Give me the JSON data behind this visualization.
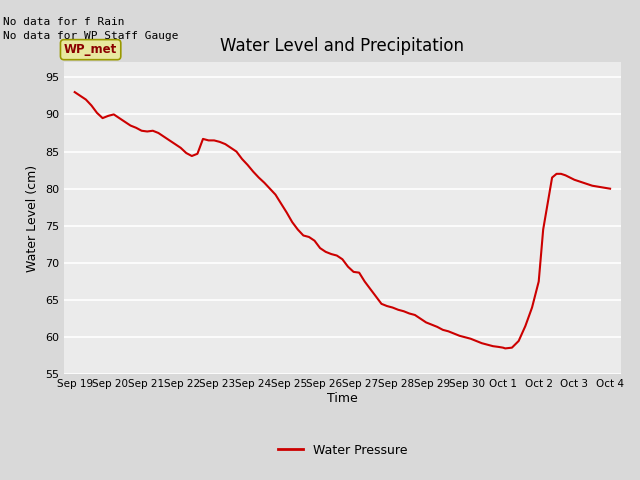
{
  "title": "Water Level and Precipitation",
  "xlabel": "Time",
  "ylabel": "Water Level (cm)",
  "ylim": [
    55,
    97
  ],
  "yticks": [
    55,
    60,
    65,
    70,
    75,
    80,
    85,
    90,
    95
  ],
  "legend_label": "Water Pressure",
  "line_color": "#cc0000",
  "fig_bg_color": "#d9d9d9",
  "plot_bg_color": "#ebebeb",
  "annotation_texts": [
    "No data for f Rain",
    "No data for WP Staff Gauge"
  ],
  "legend_box_color": "#e8e8a0",
  "legend_box_edge": "#999900",
  "legend_box_text": "WP_met",
  "x_tick_labels": [
    "Sep 19",
    "Sep 20",
    "Sep 21",
    "Sep 22",
    "Sep 23",
    "Sep 24",
    "Sep 25",
    "Sep 26",
    "Sep 27",
    "Sep 28",
    "Sep 29",
    "Sep 30",
    "Oct 1",
    "Oct 2",
    "Oct 3",
    "Oct 4"
  ],
  "x_values": [
    0,
    1,
    2,
    3,
    4,
    5,
    6,
    7,
    8,
    9,
    10,
    11,
    12,
    13,
    14,
    15
  ],
  "water_level": [
    93.0,
    92.5,
    92.0,
    91.2,
    90.2,
    89.5,
    89.8,
    90.0,
    89.5,
    89.0,
    88.5,
    88.2,
    87.8,
    87.7,
    87.8,
    87.5,
    87.0,
    86.5,
    86.0,
    85.5,
    84.8,
    84.4,
    84.7,
    86.7,
    86.5,
    86.5,
    86.3,
    86.0,
    85.5,
    85.0,
    84.0,
    83.2,
    82.3,
    81.5,
    80.8,
    80.0,
    79.2,
    78.0,
    76.8,
    75.5,
    74.5,
    73.7,
    73.5,
    73.0,
    72.0,
    71.5,
    71.2,
    71.0,
    70.5,
    69.5,
    68.8,
    68.7,
    67.5,
    66.5,
    65.5,
    64.5,
    64.2,
    64.0,
    63.7,
    63.5,
    63.2,
    63.0,
    62.5,
    62.0,
    61.7,
    61.4,
    61.0,
    60.8,
    60.5,
    60.2,
    60.0,
    59.8,
    59.5,
    59.2,
    59.0,
    58.8,
    58.7,
    58.6,
    58.5,
    58.6,
    59.5,
    61.5,
    64.0,
    67.5,
    71.0,
    74.5,
    78.0,
    81.5,
    82.0,
    82.0,
    81.8,
    81.5,
    81.2,
    80.8,
    80.4,
    80.0
  ],
  "x_data": [
    0.0,
    0.156,
    0.313,
    0.469,
    0.625,
    0.781,
    0.938,
    1.094,
    1.25,
    1.406,
    1.563,
    1.719,
    1.875,
    2.031,
    2.188,
    2.344,
    2.5,
    2.656,
    2.813,
    2.969,
    3.125,
    3.281,
    3.438,
    3.594,
    3.75,
    3.906,
    4.063,
    4.219,
    4.375,
    4.531,
    4.688,
    4.844,
    5.0,
    5.156,
    5.313,
    5.469,
    5.625,
    5.781,
    5.938,
    6.094,
    6.25,
    6.406,
    6.563,
    6.719,
    6.875,
    7.031,
    7.188,
    7.344,
    7.5,
    7.656,
    7.813,
    7.969,
    8.125,
    8.281,
    8.438,
    8.594,
    8.75,
    8.906,
    9.063,
    9.219,
    9.375,
    9.531,
    9.688,
    9.844,
    10.0,
    10.156,
    10.313,
    10.469,
    10.625,
    10.781,
    10.938,
    11.094,
    11.25,
    11.406,
    11.563,
    11.719,
    11.875,
    12.0,
    12.063,
    12.25,
    12.438,
    12.625,
    12.813,
    13.0,
    13.063,
    13.125,
    13.25,
    13.375,
    13.5,
    13.625,
    13.75,
    13.875,
    14.0,
    14.25,
    14.5,
    15.0
  ]
}
